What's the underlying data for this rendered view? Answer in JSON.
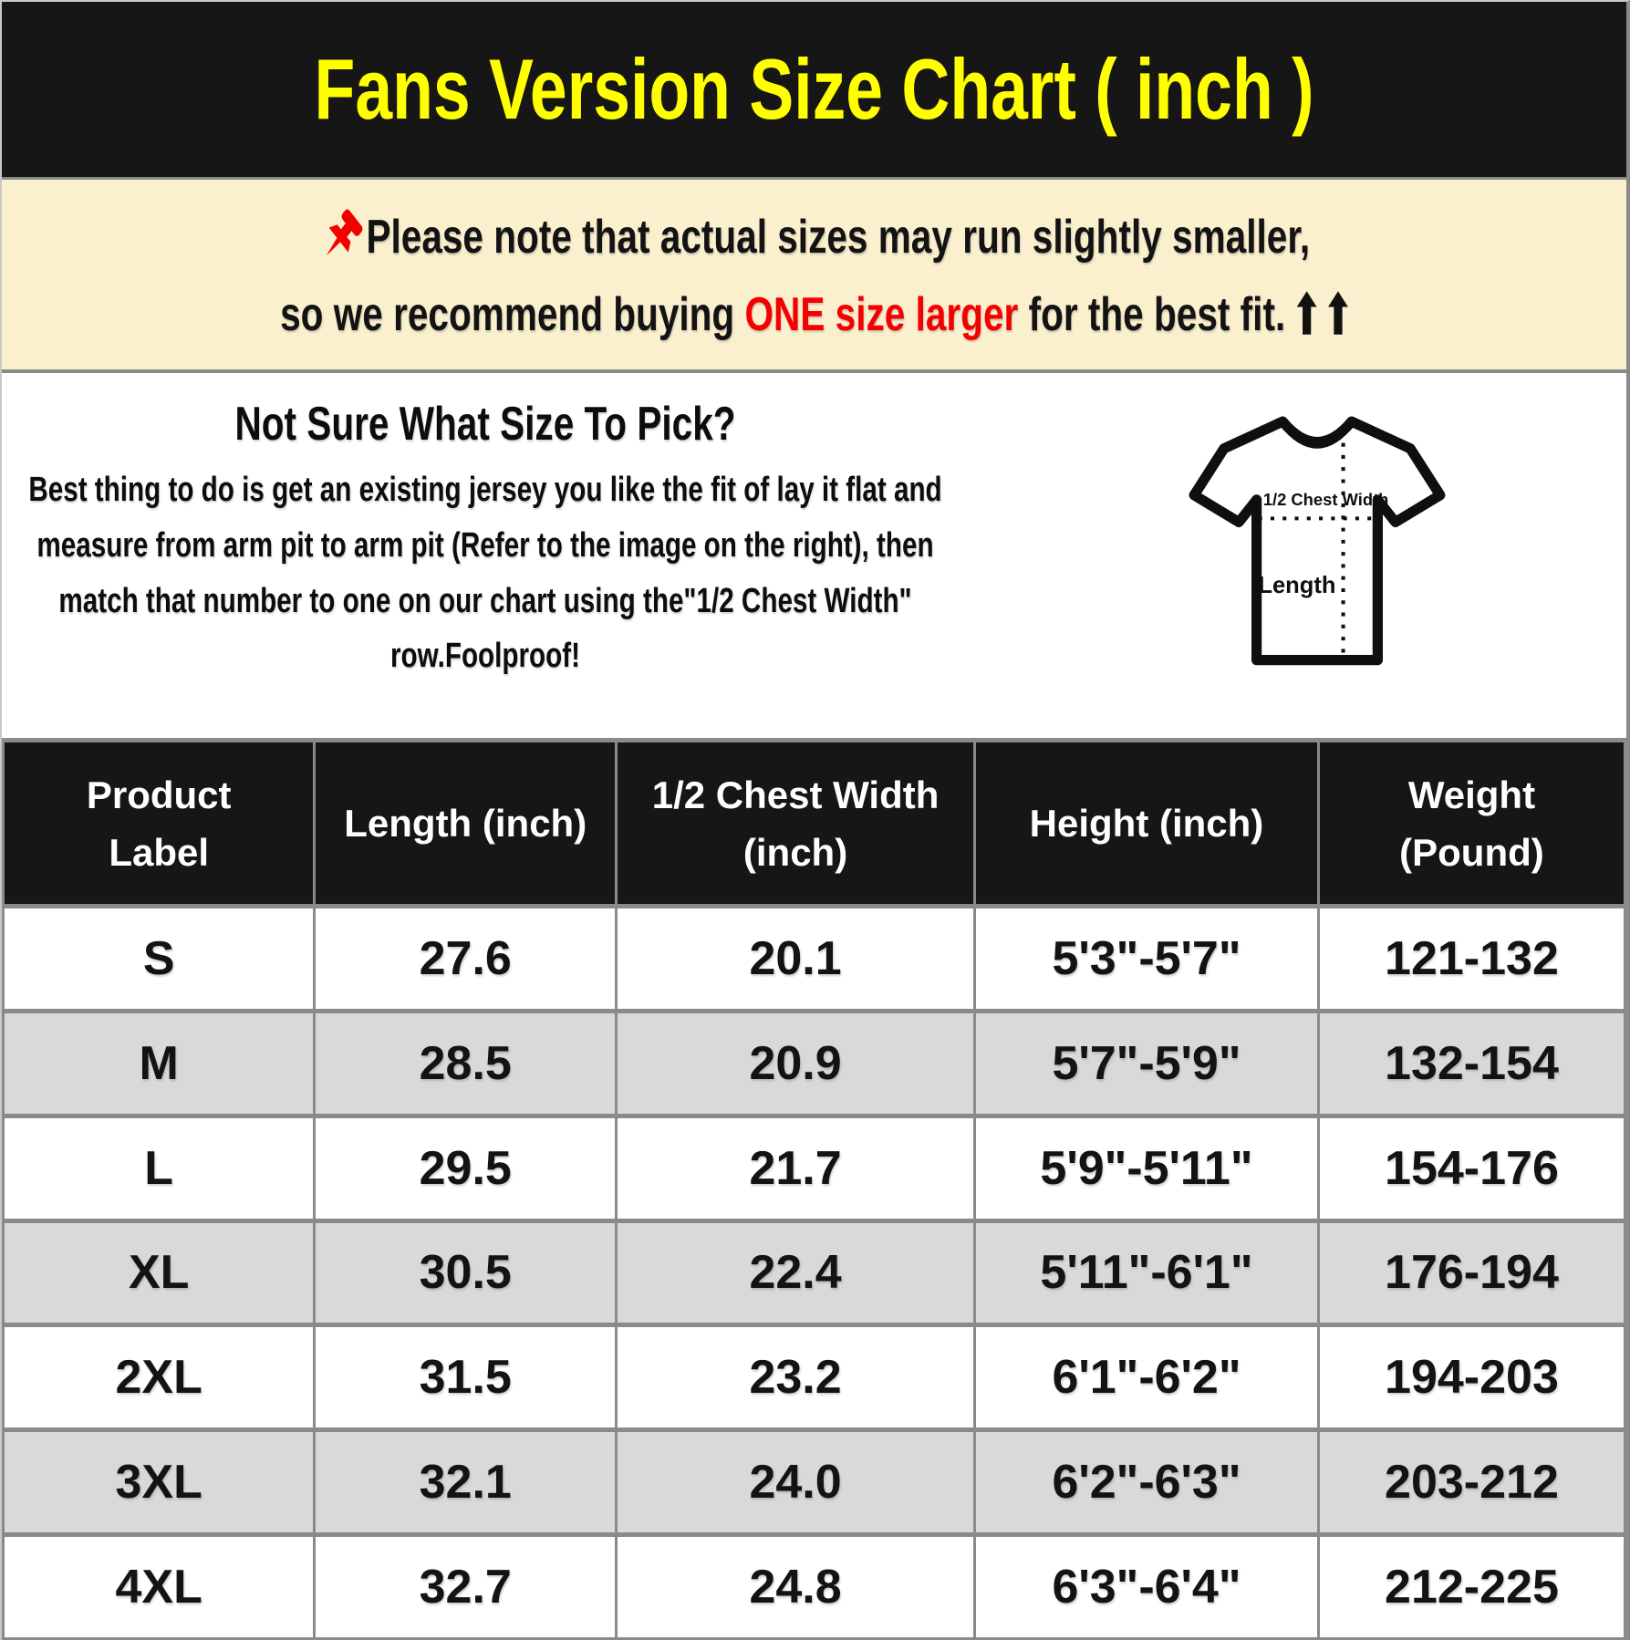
{
  "banner": {
    "title": "Fans Version Size Chart ( inch )"
  },
  "notice": {
    "pin_icon": "red-pushpin",
    "line1": "Please note that actual sizes may run slightly smaller,",
    "line2_prefix": "so we recommend buying ",
    "line2_highlight": "ONE size larger",
    "line2_suffix": " for the best fit.",
    "arrow_icon": "black-up-arrow",
    "arrow_count": 2
  },
  "guide": {
    "heading": "Not Sure What Size To Pick?",
    "body": "Best thing to do is get an existing jersey you like the fit of lay it flat and measure from arm pit to arm pit (Refer to the image on the right), then match that number to one on our chart using the\"1/2 Chest Width\" row.Foolproof!",
    "diagram": {
      "chest_label": "1/2 Chest Width",
      "length_label": "Length"
    }
  },
  "chart_data": {
    "type": "table",
    "title": "Fans Version Size Chart ( inch )",
    "columns": [
      "Product\nLabel",
      "Length (inch)",
      "1/2 Chest Width\n(inch)",
      "Height (inch)",
      "Weight\n(Pound)"
    ],
    "rows": [
      [
        "S",
        "27.6",
        "20.1",
        "5'3\"-5'7\"",
        "121-132"
      ],
      [
        "M",
        "28.5",
        "20.9",
        "5'7\"-5'9\"",
        "132-154"
      ],
      [
        "L",
        "29.5",
        "21.7",
        "5'9\"-5'11\"",
        "154-176"
      ],
      [
        "XL",
        "30.5",
        "22.4",
        "5'11\"-6'1\"",
        "176-194"
      ],
      [
        "2XL",
        "31.5",
        "23.2",
        "6'1\"-6'2\"",
        "194-203"
      ],
      [
        "3XL",
        "32.1",
        "24.0",
        "6'2\"-6'3\"",
        "203-212"
      ],
      [
        "4XL",
        "32.7",
        "24.8",
        "6'3\"-6'4\"",
        "212-225"
      ]
    ]
  },
  "colors": {
    "title_yellow": "#FFFF00",
    "highlight_red": "#F50000",
    "note_bg": "#FBF0CE",
    "banner_black": "#161616",
    "row_alt_gray": "#D9D9D9",
    "grid_gray": "#8A8A8A"
  }
}
